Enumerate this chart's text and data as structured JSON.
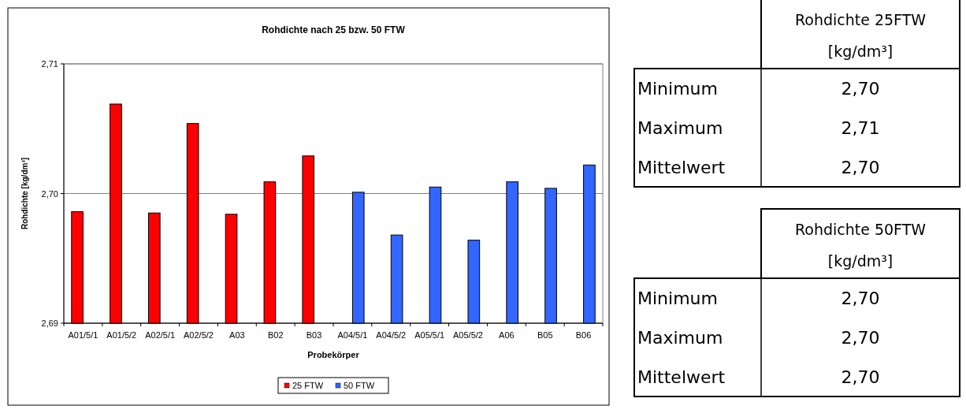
{
  "chart_data": [
    {
      "type": "bar",
      "title": "Rohdichte nach 25 bzw. 50 FTW",
      "xlabel": "Probekörper",
      "ylabel": "Rohdichte [kg/dm³]",
      "categories": [
        "A01/5/1",
        "A01/5/2",
        "A02/5/1",
        "A02/5/2",
        "A03",
        "B02",
        "B03",
        "A04/5/1",
        "A04/5/2",
        "A05/5/1",
        "A05/5/2",
        "A06",
        "B05",
        "B06"
      ],
      "series": [
        {
          "name": "25 FTW",
          "color": "#ff0000",
          "values": [
            2.6986,
            2.7069,
            2.6985,
            2.7054,
            2.6984,
            2.7009,
            2.7029,
            null,
            null,
            null,
            null,
            null,
            null,
            null
          ]
        },
        {
          "name": "50 FTW",
          "color": "#3366ff",
          "values": [
            null,
            null,
            null,
            null,
            null,
            null,
            null,
            2.7001,
            2.6968,
            2.7005,
            2.6964,
            2.7009,
            2.7004,
            2.7022
          ]
        }
      ],
      "ylim": [
        2.69,
        2.71
      ],
      "yticks": [
        {
          "value": 2.69,
          "label": "2,69"
        },
        {
          "value": 2.7,
          "label": "2,70"
        },
        {
          "value": 2.71,
          "label": "2,71"
        }
      ],
      "grid": "y",
      "legend": "bottom"
    },
    {
      "type": "other",
      "title": "Rohdichte 25FTW [kg/dm³]",
      "annotations": [
        "Minimum",
        "2,70",
        "Maximum",
        "2,71",
        "Mittelwert",
        "2,70"
      ]
    },
    {
      "type": "other",
      "title": "Rohdichte 50FTW [kg/dm³]",
      "annotations": [
        "Minimum",
        "2,70",
        "Maximum",
        "2,70",
        "Mittelwert",
        "2,70"
      ]
    }
  ]
}
